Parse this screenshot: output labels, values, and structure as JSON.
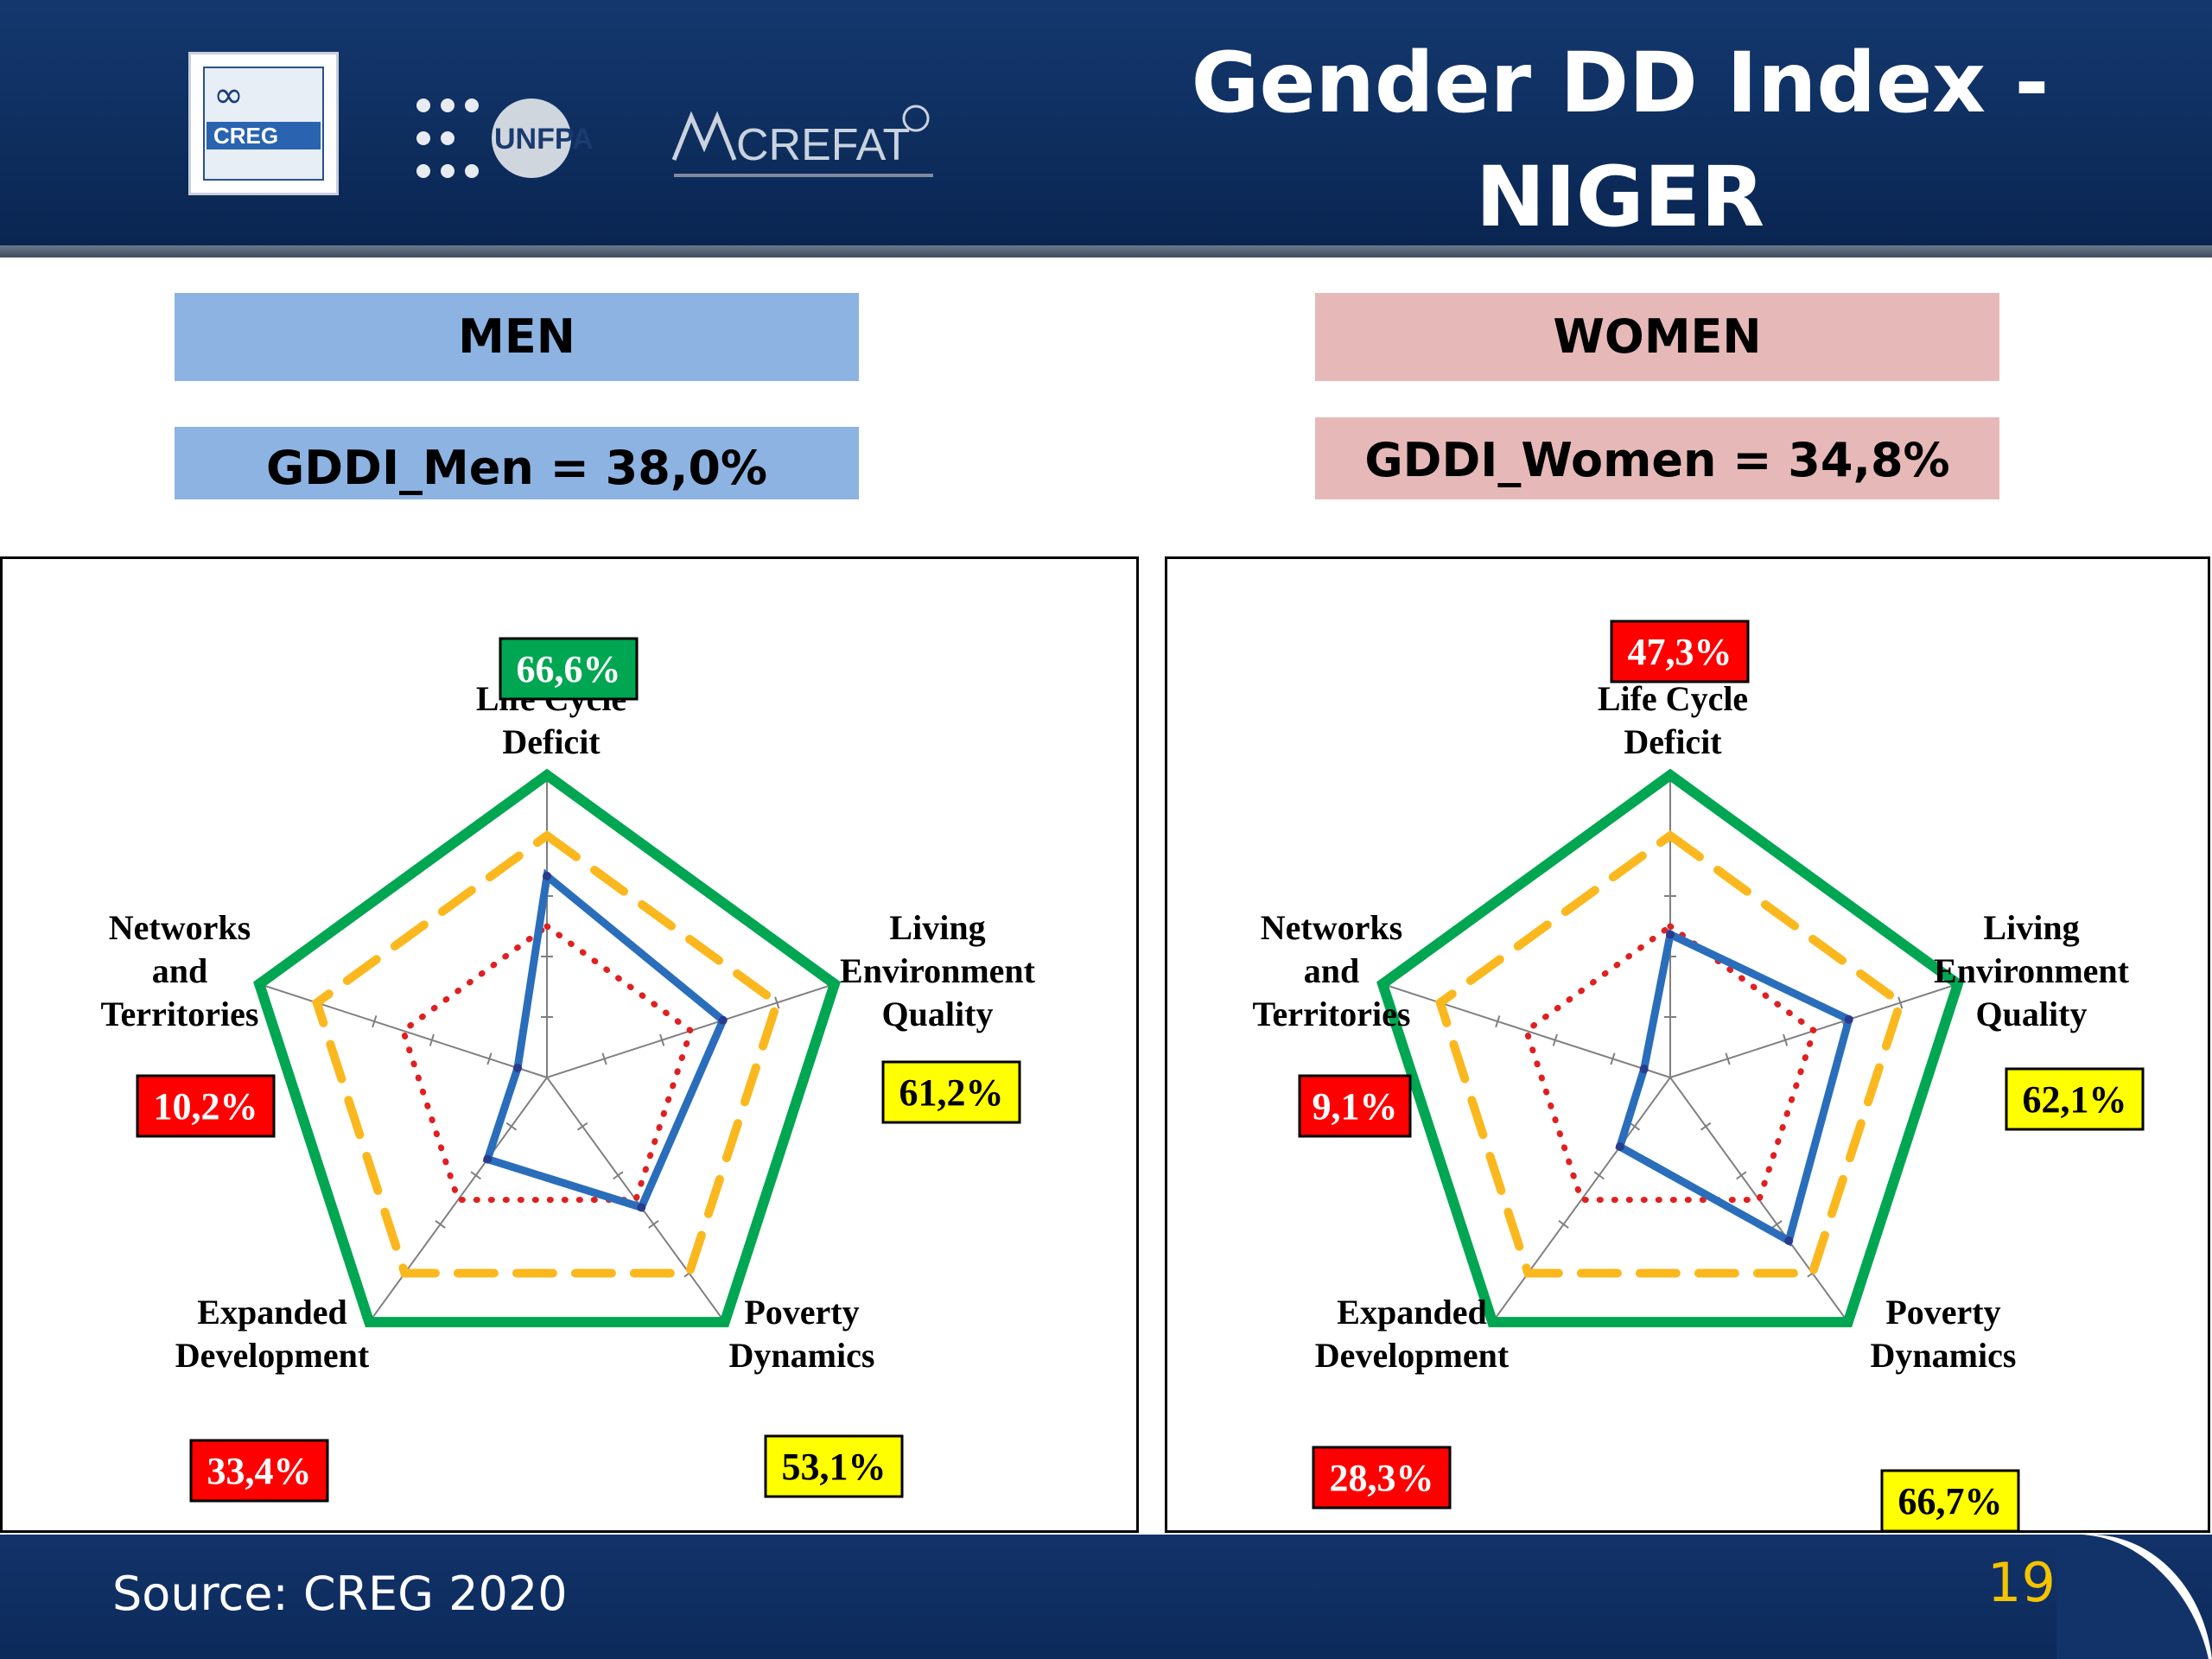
{
  "header": {
    "title_line1": "Gender DD Index -",
    "title_line2": "NIGER",
    "logos": {
      "creg_text": "CREG",
      "unfpa_text": "UNFPA",
      "crefat_text": "CREFAT"
    }
  },
  "groups": {
    "men": {
      "label": "MEN",
      "gddi": "GDDI_Men = 38,0%"
    },
    "women": {
      "label": "WOMEN",
      "gddi": "GDDI_Women = 34,8%"
    }
  },
  "footer": {
    "source": "Source: CREG 2020",
    "page_number": "19"
  },
  "colors": {
    "header_bg": "#0c2b5a",
    "men_box": "#8db3e2",
    "women_box": "#e6b9b8",
    "outer_green": "#00a651",
    "dashed_yellow": "#fbb81e",
    "solid_blue": "#2a6ebb",
    "dotted_red": "#e02020",
    "badge_red": "#ff0000",
    "badge_yellow": "#ffff00",
    "badge_green": "#00a651",
    "page_number": "#f5c400"
  },
  "chart_data": [
    {
      "type": "radar",
      "group": "men",
      "axes": [
        "Life Cycle Deficit",
        "Living Environment Quality",
        "Poverty Dynamics",
        "Expanded Development",
        "Networks and Territories"
      ],
      "axis_label_lines": [
        [
          "Life Cycle",
          "Deficit"
        ],
        [
          "Living",
          "Environment",
          "Quality"
        ],
        [
          "Poverty",
          "Dynamics"
        ],
        [
          "Expanded",
          "Development"
        ],
        [
          "Networks",
          "and",
          "Territories"
        ]
      ],
      "values": [
        66.6,
        61.2,
        53.1,
        33.4,
        10.2
      ],
      "value_labels": [
        "66,6%",
        "61,2%",
        "53,1%",
        "33,4%",
        "10,2%"
      ],
      "badge_colors": [
        "green",
        "yellow",
        "yellow",
        "red",
        "red"
      ],
      "rlim": [
        0,
        100
      ],
      "reference_rings": [
        {
          "style": "solid",
          "color": "green",
          "level": 100
        },
        {
          "style": "dashed",
          "color": "yellow",
          "level": 80
        },
        {
          "style": "dotted",
          "color": "red",
          "level": 50
        }
      ],
      "tick_count": 5
    },
    {
      "type": "radar",
      "group": "women",
      "axes": [
        "Life Cycle Deficit",
        "Living Environment Quality",
        "Poverty Dynamics",
        "Expanded Development",
        "Networks and Territories"
      ],
      "axis_label_lines": [
        [
          "Life Cycle",
          "Deficit"
        ],
        [
          "Living",
          "Environment",
          "Quality"
        ],
        [
          "Poverty",
          "Dynamics"
        ],
        [
          "Expanded",
          "Development"
        ],
        [
          "Networks",
          "and",
          "Territories"
        ]
      ],
      "values": [
        47.3,
        62.1,
        66.7,
        28.3,
        9.1
      ],
      "value_labels": [
        "47,3%",
        "62,1%",
        "66,7%",
        "28,3%",
        "9,1%"
      ],
      "badge_colors": [
        "red",
        "yellow",
        "yellow",
        "red",
        "red"
      ],
      "rlim": [
        0,
        100
      ],
      "reference_rings": [
        {
          "style": "solid",
          "color": "green",
          "level": 100
        },
        {
          "style": "dashed",
          "color": "yellow",
          "level": 80
        },
        {
          "style": "dotted",
          "color": "red",
          "level": 50
        }
      ],
      "tick_count": 5
    }
  ]
}
